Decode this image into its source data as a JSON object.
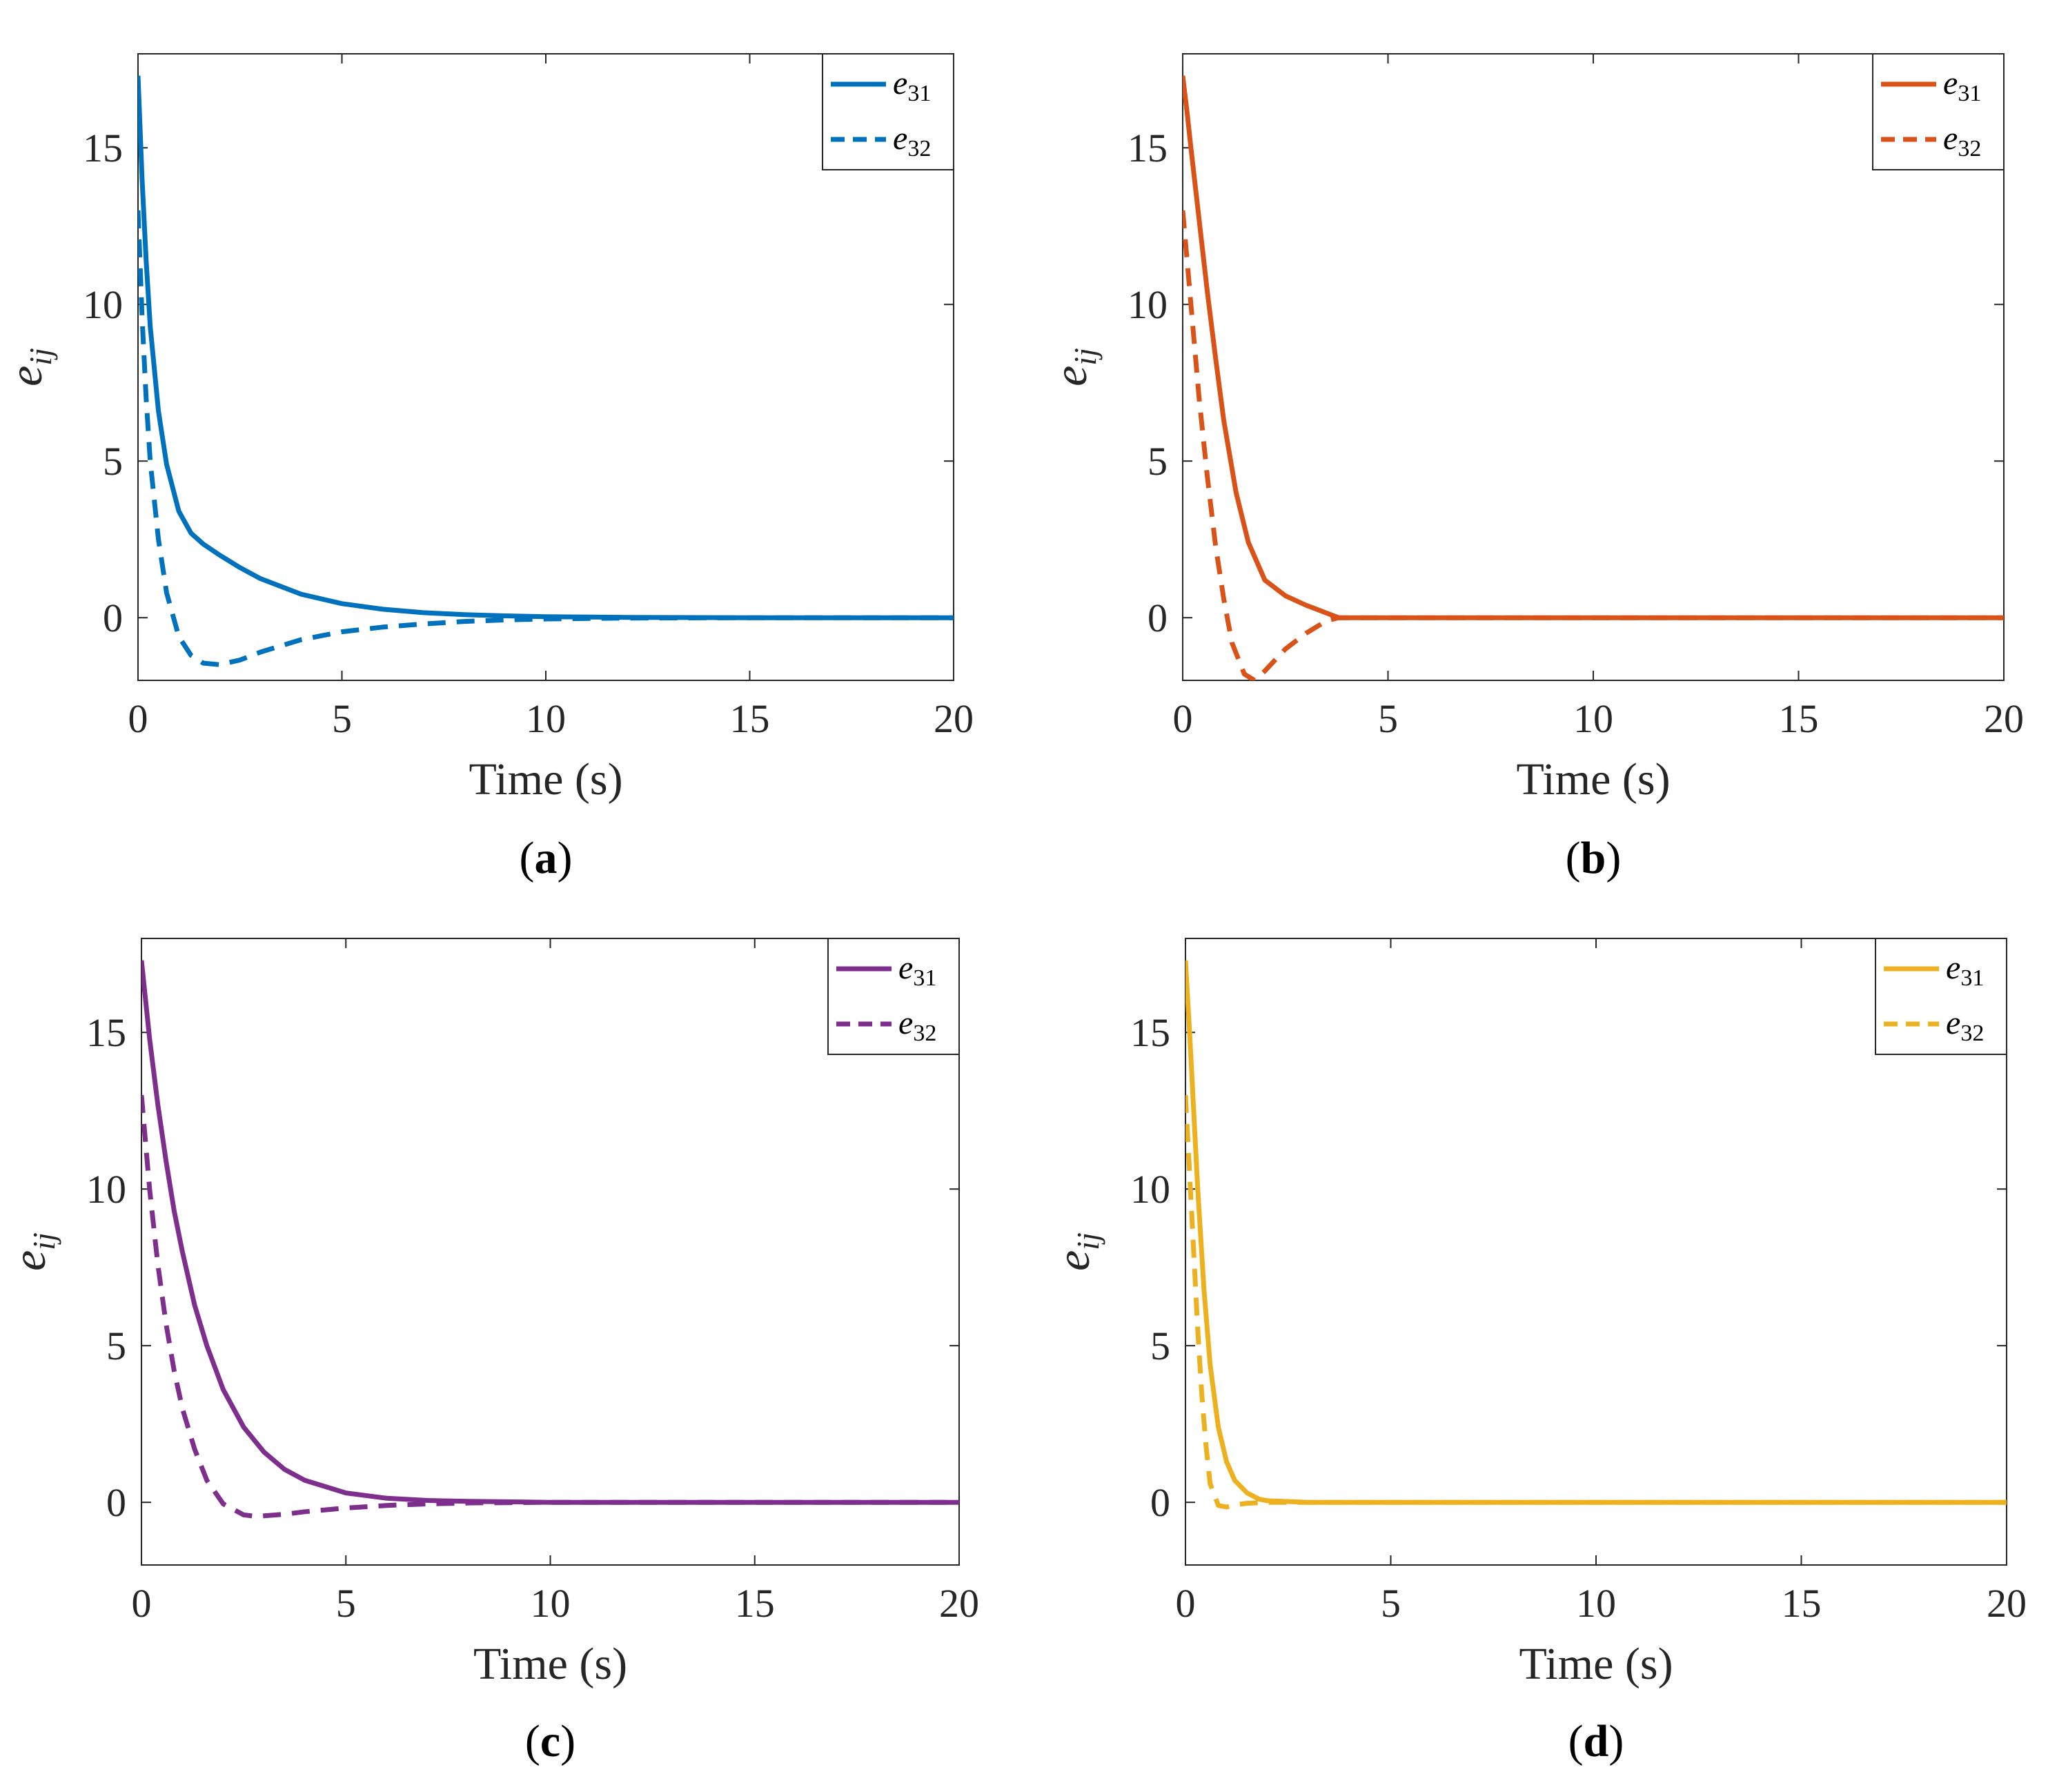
{
  "chart_data": [
    {
      "type": "line",
      "caption_letter": "a",
      "color": "#0072BD",
      "xlabel": "Time (s)",
      "ylabel_base": "e",
      "ylabel_sub": "ij",
      "xlim": [
        0,
        20
      ],
      "ylim": [
        -2,
        18
      ],
      "xticks": [
        0,
        5,
        10,
        15,
        20
      ],
      "yticks": [
        0,
        5,
        10,
        15
      ],
      "legend_position": "top-right",
      "series": [
        {
          "name": "e31",
          "label_base": "e",
          "label_sub": "31",
          "style": "solid",
          "x": [
            0,
            0.1,
            0.2,
            0.3,
            0.5,
            0.7,
            1.0,
            1.3,
            1.6,
            2.0,
            2.5,
            3.0,
            4.0,
            5.0,
            6.0,
            7.0,
            8.0,
            9.0,
            10.0,
            12.0,
            15.0,
            20.0
          ],
          "y": [
            17.3,
            14.0,
            11.4,
            9.3,
            6.6,
            4.9,
            3.4,
            2.7,
            2.35,
            2.0,
            1.6,
            1.25,
            0.75,
            0.45,
            0.27,
            0.16,
            0.1,
            0.06,
            0.03,
            0.01,
            0.0,
            0.0
          ]
        },
        {
          "name": "e32",
          "label_base": "e",
          "label_sub": "32",
          "style": "dashed",
          "x": [
            0,
            0.1,
            0.2,
            0.3,
            0.5,
            0.7,
            1.0,
            1.3,
            1.6,
            2.0,
            2.5,
            3.0,
            4.0,
            5.0,
            6.0,
            7.0,
            8.0,
            9.0,
            10.0,
            12.0,
            15.0,
            20.0
          ],
          "y": [
            13.0,
            9.6,
            7.0,
            5.0,
            2.5,
            0.8,
            -0.6,
            -1.2,
            -1.45,
            -1.5,
            -1.35,
            -1.1,
            -0.7,
            -0.45,
            -0.3,
            -0.2,
            -0.12,
            -0.07,
            -0.04,
            -0.01,
            0.0,
            0.0
          ]
        }
      ]
    },
    {
      "type": "line",
      "caption_letter": "b",
      "color": "#D95319",
      "xlabel": "Time (s)",
      "ylabel_base": "e",
      "ylabel_sub": "ij",
      "xlim": [
        0,
        20
      ],
      "ylim": [
        -2,
        18
      ],
      "xticks": [
        0,
        5,
        10,
        15,
        20
      ],
      "yticks": [
        0,
        5,
        10,
        15
      ],
      "legend_position": "top-right",
      "series": [
        {
          "name": "e31",
          "label_base": "e",
          "label_sub": "31",
          "style": "solid",
          "x": [
            0,
            0.1,
            0.2,
            0.4,
            0.6,
            0.8,
            1.0,
            1.3,
            1.6,
            2.0,
            2.5,
            3.0,
            3.5,
            3.8,
            4.0,
            5.0,
            10.0,
            15.0,
            20.0
          ],
          "y": [
            17.3,
            16.2,
            15.0,
            12.7,
            10.4,
            8.3,
            6.3,
            4.0,
            2.4,
            1.2,
            0.7,
            0.4,
            0.15,
            0.0,
            0.0,
            0.0,
            0.0,
            0.0,
            0.0
          ]
        },
        {
          "name": "e32",
          "label_base": "e",
          "label_sub": "32",
          "style": "dashed",
          "x": [
            0,
            0.1,
            0.2,
            0.4,
            0.6,
            0.8,
            1.0,
            1.2,
            1.5,
            1.75,
            2.0,
            2.5,
            3.0,
            3.5,
            3.8,
            4.0,
            5.0,
            10.0,
            15.0,
            20.0
          ],
          "y": [
            13.0,
            11.5,
            10.0,
            7.0,
            4.5,
            2.3,
            0.6,
            -0.8,
            -1.8,
            -2.0,
            -1.7,
            -1.0,
            -0.5,
            -0.1,
            0.0,
            0.0,
            0.0,
            0.0,
            0.0,
            0.0
          ]
        }
      ]
    },
    {
      "type": "line",
      "caption_letter": "c",
      "color": "#7E2F8E",
      "xlabel": "Time (s)",
      "ylabel_base": "e",
      "ylabel_sub": "ij",
      "xlim": [
        0,
        20
      ],
      "ylim": [
        -2,
        18
      ],
      "xticks": [
        0,
        5,
        10,
        15,
        20
      ],
      "yticks": [
        0,
        5,
        10,
        15
      ],
      "legend_position": "top-right",
      "series": [
        {
          "name": "e31",
          "label_base": "e",
          "label_sub": "31",
          "style": "solid",
          "x": [
            0,
            0.2,
            0.4,
            0.6,
            0.8,
            1.0,
            1.3,
            1.6,
            2.0,
            2.5,
            3.0,
            3.5,
            4.0,
            5.0,
            6.0,
            7.0,
            8.0,
            10.0,
            15.0,
            20.0
          ],
          "y": [
            17.3,
            14.8,
            12.7,
            10.9,
            9.3,
            8.0,
            6.3,
            5.0,
            3.6,
            2.4,
            1.6,
            1.05,
            0.7,
            0.3,
            0.13,
            0.06,
            0.03,
            0.0,
            0.0,
            0.0
          ]
        },
        {
          "name": "e32",
          "label_base": "e",
          "label_sub": "32",
          "style": "dashed",
          "x": [
            0,
            0.2,
            0.4,
            0.6,
            0.8,
            1.0,
            1.3,
            1.6,
            2.0,
            2.5,
            2.8,
            3.5,
            4.0,
            5.0,
            6.0,
            7.0,
            8.0,
            10.0,
            15.0,
            20.0
          ],
          "y": [
            13.0,
            10.0,
            7.6,
            5.7,
            4.2,
            3.0,
            1.7,
            0.7,
            -0.05,
            -0.4,
            -0.45,
            -0.38,
            -0.3,
            -0.18,
            -0.1,
            -0.05,
            -0.02,
            0.0,
            0.0,
            0.0
          ]
        }
      ]
    },
    {
      "type": "line",
      "caption_letter": "d",
      "color": "#EDB120",
      "xlabel": "Time (s)",
      "ylabel_base": "e",
      "ylabel_sub": "ij",
      "xlim": [
        0,
        20
      ],
      "ylim": [
        -2,
        18
      ],
      "xticks": [
        0,
        5,
        10,
        15,
        20
      ],
      "yticks": [
        0,
        5,
        10,
        15
      ],
      "legend_position": "top-right",
      "series": [
        {
          "name": "e31",
          "label_base": "e",
          "label_sub": "31",
          "style": "solid",
          "x": [
            0,
            0.1,
            0.2,
            0.3,
            0.45,
            0.6,
            0.8,
            1.0,
            1.2,
            1.5,
            1.8,
            2.0,
            3.0,
            5.0,
            10.0,
            15.0,
            20.0
          ],
          "y": [
            17.3,
            15.0,
            12.5,
            10.0,
            6.8,
            4.4,
            2.4,
            1.3,
            0.7,
            0.3,
            0.1,
            0.05,
            0.0,
            0.0,
            0.0,
            0.0,
            0.0
          ]
        },
        {
          "name": "e32",
          "label_base": "e",
          "label_sub": "32",
          "style": "dashed",
          "x": [
            0,
            0.1,
            0.2,
            0.3,
            0.4,
            0.5,
            0.6,
            0.8,
            1.0,
            1.2,
            1.5,
            2.0,
            3.0,
            5.0,
            10.0,
            15.0,
            20.0
          ],
          "y": [
            13.0,
            10.5,
            8.0,
            5.5,
            3.4,
            1.8,
            0.6,
            -0.1,
            -0.15,
            -0.08,
            -0.03,
            0.0,
            0.0,
            0.0,
            0.0,
            0.0,
            0.0
          ]
        }
      ]
    }
  ]
}
